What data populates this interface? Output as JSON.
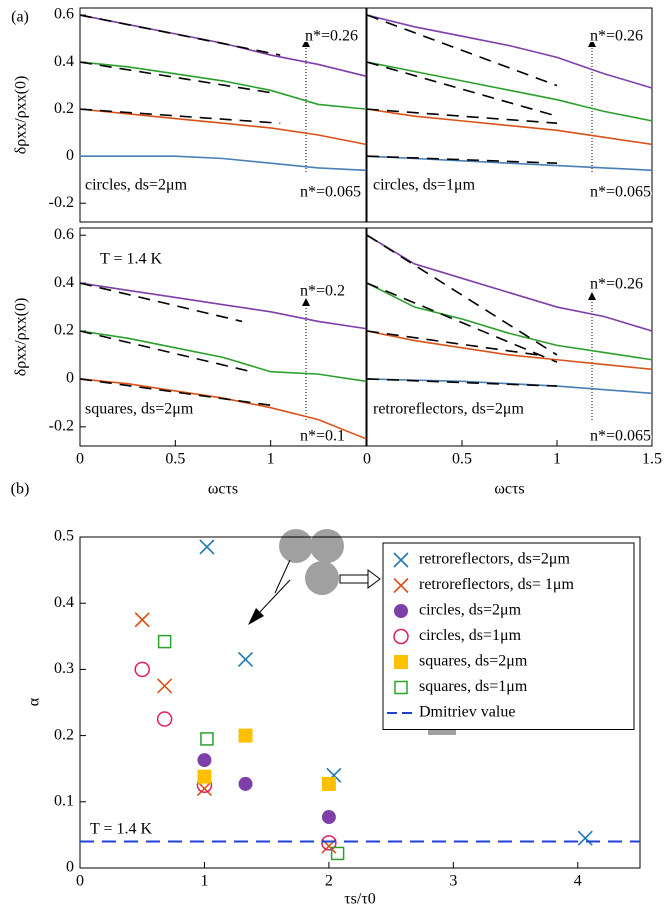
{
  "chart_data": [
    {
      "type": "line",
      "label": "(a)",
      "ylabel": "δρxx/ρxx(0)",
      "xlim": [
        0,
        1.5
      ],
      "ylim": [
        -0.28,
        0.63
      ],
      "yticks": [
        -0.2,
        0,
        0.2,
        0.4,
        0.6
      ],
      "x": [
        0,
        0.25,
        0.5,
        0.75,
        1,
        1.25,
        1.5
      ],
      "series": [
        {
          "color": "#4a7fb5",
          "values": [
            0,
            0,
            0,
            -0.01,
            -0.03,
            -0.05,
            -0.06
          ]
        },
        {
          "color": "#d95319",
          "values": [
            0.2,
            0.18,
            0.16,
            0.14,
            0.12,
            0.09,
            0.05
          ]
        },
        {
          "color": "#2ca02c",
          "values": [
            0.4,
            0.38,
            0.35,
            0.32,
            0.28,
            0.22,
            0.2
          ]
        },
        {
          "color": "#7e3fa8",
          "values": [
            0.6,
            0.56,
            0.52,
            0.48,
            0.43,
            0.39,
            0.34
          ]
        }
      ],
      "fits": [
        {
          "x": [
            0,
            1.05
          ],
          "values": [
            0.2,
            0.14
          ]
        },
        {
          "x": [
            0,
            1.0
          ],
          "values": [
            0.4,
            0.27
          ]
        },
        {
          "x": [
            0,
            1.05
          ],
          "values": [
            0.6,
            0.43
          ]
        }
      ],
      "annotations": [
        "n*=0.26",
        "n*=0.065",
        "circles, ds=2μm"
      ]
    },
    {
      "type": "line",
      "xlim": [
        0,
        1.5
      ],
      "ylim": [
        -0.28,
        0.63
      ],
      "x": [
        0,
        0.25,
        0.5,
        0.75,
        1,
        1.25,
        1.5
      ],
      "series": [
        {
          "color": "#4a7fb5",
          "values": [
            0,
            -0.01,
            -0.02,
            -0.03,
            -0.04,
            -0.05,
            -0.06
          ]
        },
        {
          "color": "#d95319",
          "values": [
            0.2,
            0.17,
            0.15,
            0.13,
            0.11,
            0.08,
            0.05
          ]
        },
        {
          "color": "#2ca02c",
          "values": [
            0.4,
            0.36,
            0.32,
            0.28,
            0.24,
            0.19,
            0.15
          ]
        },
        {
          "color": "#7e3fa8",
          "values": [
            0.6,
            0.55,
            0.51,
            0.47,
            0.42,
            0.35,
            0.29
          ]
        }
      ],
      "fits": [
        {
          "x": [
            0,
            1.0
          ],
          "values": [
            0,
            -0.03
          ]
        },
        {
          "x": [
            0,
            1.0
          ],
          "values": [
            0.2,
            0.14
          ]
        },
        {
          "x": [
            0,
            1.0
          ],
          "values": [
            0.4,
            0.17
          ]
        },
        {
          "x": [
            0,
            1.0
          ],
          "values": [
            0.6,
            0.3
          ]
        }
      ],
      "annotations": [
        "n*=0.26",
        "n*=0.065",
        "circles, ds=1μm"
      ]
    },
    {
      "type": "line",
      "ylabel": "δρxx/ρxx(0)",
      "xlabel": "ωcτs",
      "xlim": [
        0,
        1.5
      ],
      "ylim": [
        -0.28,
        0.63
      ],
      "yticks": [
        -0.2,
        0,
        0.2,
        0.4,
        0.6
      ],
      "xticks": [
        0,
        0.5,
        1
      ],
      "x": [
        0,
        0.25,
        0.5,
        0.75,
        1,
        1.25,
        1.5
      ],
      "series": [
        {
          "color": "#d95319",
          "values": [
            0,
            -0.02,
            -0.05,
            -0.08,
            -0.12,
            -0.17,
            -0.25
          ]
        },
        {
          "color": "#2ca02c",
          "values": [
            0.2,
            0.17,
            0.13,
            0.09,
            0.03,
            0.02,
            -0.01
          ]
        },
        {
          "color": "#7e3fa8",
          "values": [
            0.4,
            0.37,
            0.34,
            0.31,
            0.28,
            0.24,
            0.21
          ]
        }
      ],
      "fits": [
        {
          "x": [
            0,
            1.0
          ],
          "values": [
            0,
            -0.11
          ]
        },
        {
          "x": [
            0,
            0.9
          ],
          "values": [
            0.2,
            0.03
          ]
        },
        {
          "x": [
            0,
            0.85
          ],
          "values": [
            0.4,
            0.24
          ]
        }
      ],
      "annotations": [
        "T = 1.4 K",
        "n*=0.2",
        "n*=0.1",
        "squares, ds=2μm"
      ]
    },
    {
      "type": "line",
      "xlabel": "ωcτs",
      "xlim": [
        0,
        1.5
      ],
      "ylim": [
        -0.28,
        0.63
      ],
      "xticks": [
        0,
        0.5,
        1,
        1.5
      ],
      "x": [
        0,
        0.25,
        0.5,
        0.75,
        1,
        1.25,
        1.5
      ],
      "series": [
        {
          "color": "#4a7fb5",
          "values": [
            0,
            -0.005,
            -0.01,
            -0.02,
            -0.03,
            -0.045,
            -0.06
          ]
        },
        {
          "color": "#d95319",
          "values": [
            0.2,
            0.16,
            0.13,
            0.1,
            0.08,
            0.06,
            0.04
          ]
        },
        {
          "color": "#2ca02c",
          "values": [
            0.4,
            0.3,
            0.25,
            0.19,
            0.14,
            0.11,
            0.08
          ]
        },
        {
          "color": "#7e3fa8",
          "values": [
            0.6,
            0.48,
            0.42,
            0.36,
            0.3,
            0.26,
            0.2
          ]
        }
      ],
      "fits": [
        {
          "x": [
            0,
            1.0
          ],
          "values": [
            0,
            -0.03
          ]
        },
        {
          "x": [
            0,
            0.9
          ],
          "values": [
            0.2,
            0.1
          ]
        },
        {
          "x": [
            0,
            1.0
          ],
          "values": [
            0.4,
            0.07
          ]
        },
        {
          "x": [
            0,
            1.0
          ],
          "values": [
            0.6,
            0.1
          ]
        }
      ],
      "annotations": [
        "n*=0.26",
        "n*=0.065",
        "retroreflectors, ds=2μm"
      ]
    },
    {
      "type": "scatter",
      "label": "(b)",
      "xlabel": "τs/τ0",
      "ylabel": "α",
      "xlim": [
        0,
        4.5
      ],
      "ylim": [
        0,
        0.5
      ],
      "xticks": [
        0,
        1,
        2,
        3,
        4
      ],
      "yticks": [
        0,
        0.1,
        0.2,
        0.3,
        0.4,
        0.5
      ],
      "annotations": [
        "T = 1.4 K"
      ],
      "series": [
        {
          "name": "retroreflectors, ds=2μm",
          "marker": "x",
          "color": "#1f77b4",
          "x": [
            1.02,
            1.33,
            2.04,
            4.06
          ],
          "values": [
            0.485,
            0.315,
            0.14,
            0.045
          ]
        },
        {
          "name": "retroreflectors, ds= 1μm",
          "marker": "x",
          "color": "#d95319",
          "x": [
            0.5,
            0.68,
            1.0,
            2.0
          ],
          "values": [
            0.375,
            0.275,
            0.12,
            0.033
          ]
        },
        {
          "name": "circles, ds=2μm",
          "marker": "circle",
          "color": "#7e3fa8",
          "x": [
            1.0,
            1.33,
            2.0
          ],
          "values": [
            0.163,
            0.127,
            0.077
          ]
        },
        {
          "name": "circles, ds=1μm",
          "marker": "circle-open",
          "color": "#e0205a",
          "x": [
            0.5,
            0.68,
            1.0,
            2.0
          ],
          "values": [
            0.3,
            0.225,
            0.125,
            0.038
          ]
        },
        {
          "name": "squares, ds=2μm",
          "marker": "square",
          "color": "#ffc000",
          "x": [
            1.0,
            1.33,
            2.0
          ],
          "values": [
            0.138,
            0.2,
            0.127
          ]
        },
        {
          "name": "squares, ds=1μm",
          "marker": "square-open",
          "color": "#2ca02c",
          "x": [
            0.68,
            1.02,
            2.07
          ],
          "values": [
            0.342,
            0.195,
            0.022
          ]
        },
        {
          "name": "Dmitriev value",
          "marker": "dash",
          "color": "#1f3fd6",
          "value": 0.04
        }
      ]
    }
  ]
}
